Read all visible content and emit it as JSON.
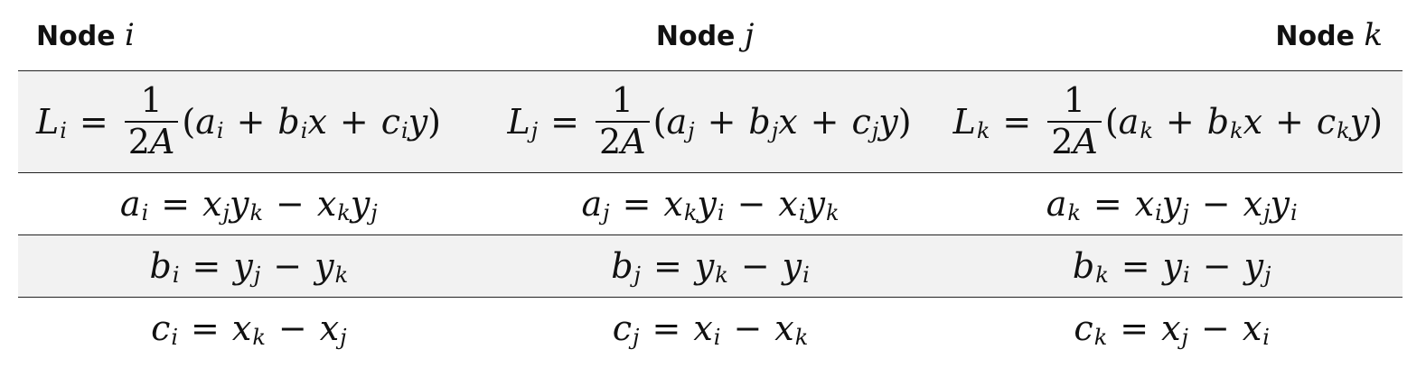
{
  "header": {
    "col1_word": "Node",
    "col1_var": "i",
    "col2_word": "Node",
    "col2_var": "j",
    "col3_word": "Node",
    "col3_var": "k"
  },
  "eq": {
    "eq_sign": "=",
    "plus": "+",
    "minus": "−",
    "one": "1",
    "two": "2",
    "A": "A",
    "lparen": "(",
    "rparen": ")",
    "L": "L",
    "a": "a",
    "b": "b",
    "c": "c",
    "x": "x",
    "y": "y",
    "i": "i",
    "j": "j",
    "k": "k"
  }
}
